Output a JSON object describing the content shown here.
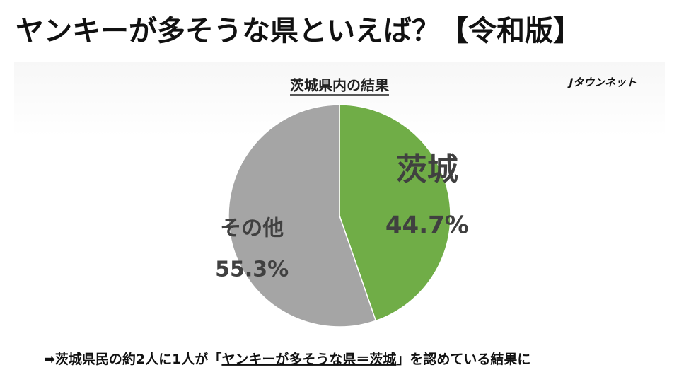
{
  "chart_data": {
    "type": "pie",
    "title": "ヤンキーが多そうな県といえば？【令和版】",
    "subtitle": "茨城県内の結果",
    "source": "Jタウンネット",
    "note": [
      "➡茨城県民の約2人に1人が「",
      "ヤンキーが多そうな県＝茨城",
      "」を認めている結果に"
    ],
    "categories": [
      "茨城",
      "その他"
    ],
    "values": [
      44.7,
      55.3
    ],
    "value_labels": [
      "44.7%",
      "55.3%"
    ],
    "colors": [
      "#70ad47",
      "#a5a5a5"
    ]
  }
}
